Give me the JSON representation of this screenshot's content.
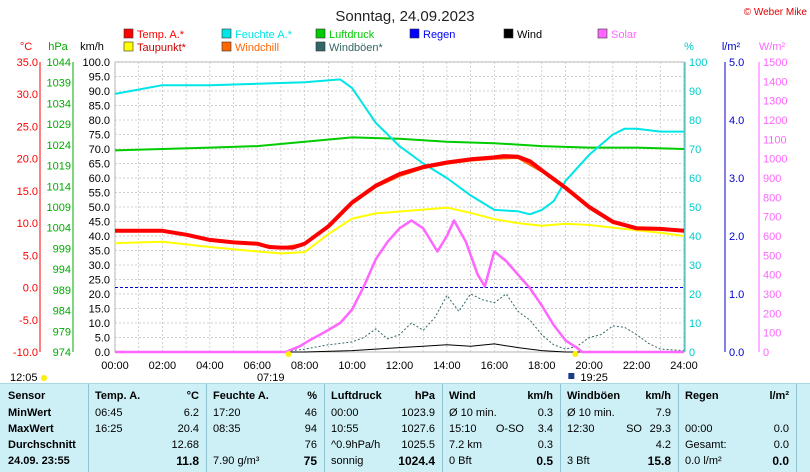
{
  "title": "Sonntag, 24.09.2023",
  "credit": "© Weber Mike",
  "legend": [
    {
      "label": "Temp. A.*",
      "color": "#ff0000"
    },
    {
      "label": "Feuchte A.*",
      "color": "#00e5e5"
    },
    {
      "label": "Luftdruck",
      "color": "#00cc00"
    },
    {
      "label": "Regen",
      "color": "#0000ff"
    },
    {
      "label": "Wind",
      "color": "#000000"
    },
    {
      "label": "Solar",
      "color": "#ff66ff"
    },
    {
      "label": "Taupunkt*",
      "color": "#ffff00"
    },
    {
      "label": "Windchill",
      "color": "#ff6600"
    },
    {
      "label": "Windböen*",
      "color": "#336666"
    }
  ],
  "axis_units": {
    "temp": "°C",
    "pressure": "hPa",
    "speed": "km/h",
    "humidity": "%",
    "rain": "l/m²",
    "solar": "W/m²"
  },
  "chart_data": {
    "type": "line",
    "x_ticks": [
      "00:00",
      "02:00",
      "04:00",
      "06:00",
      "08:00",
      "10:00",
      "12:00",
      "14:00",
      "16:00",
      "18:00",
      "20:00",
      "22:00",
      "24:00"
    ],
    "axes": {
      "temp": {
        "min": -10,
        "max": 35,
        "ticks": [
          "35.0",
          "30.0",
          "25.0",
          "20.0",
          "15.0",
          "10.0",
          "5.0",
          "0.0",
          "-5.0",
          "-10.0"
        ]
      },
      "pressure": {
        "ticks": [
          "1044",
          "1039",
          "1034",
          "1029",
          "1024",
          "1019",
          "1014",
          "1009",
          "1004",
          "999",
          "994",
          "989",
          "984",
          "979",
          "974"
        ]
      },
      "speed": {
        "min": 0,
        "max": 100,
        "ticks": [
          "100.0",
          "95.0",
          "90.0",
          "85.0",
          "80.0",
          "75.0",
          "70.0",
          "65.0",
          "60.0",
          "55.0",
          "50.0",
          "45.0",
          "40.0",
          "35.0",
          "30.0",
          "25.0",
          "20.0",
          "15.0",
          "10.0",
          "5.0",
          "0.0"
        ]
      },
      "humidity": {
        "min": 0,
        "max": 100,
        "ticks": [
          "100",
          "90",
          "80",
          "70",
          "60",
          "50",
          "40",
          "30",
          "20",
          "10",
          "0"
        ]
      },
      "rain": {
        "min": 0,
        "max": 5,
        "ticks": [
          "5.0",
          "4.0",
          "3.0",
          "2.0",
          "1.0",
          "0.0"
        ]
      },
      "solar": {
        "min": 0,
        "max": 1500,
        "ticks": [
          "1500",
          "1400",
          "1300",
          "1200",
          "1100",
          "1000",
          "900",
          "800",
          "700",
          "600",
          "500",
          "400",
          "300",
          "200",
          "100",
          "0"
        ]
      }
    },
    "series": [
      {
        "name": "Temp. A.*",
        "axis": "temp",
        "color": "#ff0000",
        "points": [
          [
            0,
            8.8
          ],
          [
            2,
            8.8
          ],
          [
            3,
            8.2
          ],
          [
            4,
            7.4
          ],
          [
            5,
            7.0
          ],
          [
            6,
            6.8
          ],
          [
            6.5,
            6.3
          ],
          [
            7,
            6.2
          ],
          [
            7.5,
            6.2
          ],
          [
            8,
            6.8
          ],
          [
            9,
            9.5
          ],
          [
            10,
            13.2
          ],
          [
            11,
            15.8
          ],
          [
            12,
            17.6
          ],
          [
            13,
            18.7
          ],
          [
            14,
            19.4
          ],
          [
            15,
            19.9
          ],
          [
            16,
            20.2
          ],
          [
            16.4,
            20.4
          ],
          [
            17,
            20.3
          ],
          [
            17.5,
            19.6
          ],
          [
            18,
            18.2
          ],
          [
            19,
            15.5
          ],
          [
            20,
            12.5
          ],
          [
            21,
            10.2
          ],
          [
            22,
            9.2
          ],
          [
            23,
            9.1
          ],
          [
            24,
            8.8
          ]
        ]
      },
      {
        "name": "Windchill",
        "axis": "temp",
        "color": "#ff6600",
        "points": [
          [
            0,
            8.8
          ],
          [
            2,
            8.8
          ],
          [
            3,
            8.2
          ],
          [
            4,
            7.4
          ],
          [
            5,
            7.0
          ],
          [
            6,
            6.8
          ],
          [
            7,
            6.2
          ],
          [
            8,
            6.8
          ],
          [
            9,
            9.3
          ],
          [
            10,
            13.0
          ],
          [
            11,
            15.6
          ],
          [
            12,
            17.3
          ],
          [
            13,
            18.5
          ],
          [
            14,
            19.2
          ],
          [
            15,
            19.7
          ],
          [
            16,
            20.0
          ],
          [
            17,
            20.1
          ],
          [
            18,
            18.0
          ],
          [
            19,
            15.3
          ],
          [
            20,
            12.3
          ],
          [
            21,
            10.0
          ],
          [
            22,
            9.2
          ],
          [
            24,
            8.8
          ]
        ]
      },
      {
        "name": "Taupunkt*",
        "axis": "temp",
        "color": "#ffff00",
        "points": [
          [
            0,
            6.9
          ],
          [
            2,
            7.1
          ],
          [
            4,
            6.3
          ],
          [
            6,
            5.6
          ],
          [
            7,
            5.3
          ],
          [
            8,
            5.5
          ],
          [
            9,
            8.3
          ],
          [
            10,
            10.7
          ],
          [
            11,
            11.5
          ],
          [
            12,
            11.8
          ],
          [
            13,
            12.1
          ],
          [
            14,
            12.4
          ],
          [
            15,
            11.6
          ],
          [
            16,
            10.6
          ],
          [
            17,
            10.0
          ],
          [
            18,
            9.6
          ],
          [
            19,
            9.9
          ],
          [
            20,
            9.7
          ],
          [
            21,
            9.3
          ],
          [
            22,
            8.9
          ],
          [
            23,
            8.5
          ],
          [
            24,
            8.0
          ]
        ]
      },
      {
        "name": "Feuchte A.*",
        "axis": "humidity",
        "color": "#00e5e5",
        "points": [
          [
            0,
            89
          ],
          [
            2,
            92
          ],
          [
            4,
            92
          ],
          [
            6,
            92.5
          ],
          [
            8,
            93
          ],
          [
            9.5,
            94
          ],
          [
            10,
            91
          ],
          [
            11,
            79
          ],
          [
            12,
            71
          ],
          [
            13,
            65
          ],
          [
            14,
            60
          ],
          [
            15,
            54
          ],
          [
            16,
            49
          ],
          [
            17,
            48.5
          ],
          [
            17.5,
            47.5
          ],
          [
            18,
            49
          ],
          [
            18.5,
            52
          ],
          [
            19,
            59
          ],
          [
            20,
            68
          ],
          [
            21,
            75
          ],
          [
            21.5,
            77
          ],
          [
            22,
            77
          ],
          [
            23,
            76
          ],
          [
            24,
            76
          ]
        ]
      },
      {
        "name": "Luftdruck",
        "axis": "humidity",
        "color": "#00cc00",
        "points": [
          [
            0,
            69.5
          ],
          [
            2,
            70
          ],
          [
            4,
            70.5
          ],
          [
            6,
            71
          ],
          [
            8,
            72.5
          ],
          [
            10,
            74
          ],
          [
            12,
            73.5
          ],
          [
            14,
            72.5
          ],
          [
            16,
            72
          ],
          [
            18,
            71
          ],
          [
            20,
            70.5
          ],
          [
            22,
            70.5
          ],
          [
            24,
            70
          ]
        ]
      },
      {
        "name": "Solar",
        "axis": "solar",
        "color": "#ff66ff",
        "points": [
          [
            0,
            0
          ],
          [
            7.2,
            0
          ],
          [
            7.8,
            30
          ],
          [
            8.2,
            60
          ],
          [
            8.8,
            100
          ],
          [
            9.5,
            150
          ],
          [
            10,
            220
          ],
          [
            10.5,
            340
          ],
          [
            11,
            480
          ],
          [
            11.5,
            570
          ],
          [
            12,
            640
          ],
          [
            12.5,
            680
          ],
          [
            13,
            640
          ],
          [
            13.3,
            580
          ],
          [
            13.6,
            520
          ],
          [
            14,
            600
          ],
          [
            14.3,
            680
          ],
          [
            14.8,
            570
          ],
          [
            15.3,
            400
          ],
          [
            15.6,
            340
          ],
          [
            16,
            520
          ],
          [
            16.5,
            470
          ],
          [
            17,
            400
          ],
          [
            17.5,
            330
          ],
          [
            18,
            240
          ],
          [
            18.5,
            140
          ],
          [
            19,
            60
          ],
          [
            19.5,
            20
          ],
          [
            19.7,
            0
          ],
          [
            24,
            0
          ]
        ]
      },
      {
        "name": "Windböen*",
        "axis": "speed",
        "color": "#336666",
        "points": [
          [
            0,
            0
          ],
          [
            7,
            0
          ],
          [
            8,
            1
          ],
          [
            9,
            2.5
          ],
          [
            10,
            3.5
          ],
          [
            10.5,
            5
          ],
          [
            11,
            8
          ],
          [
            11.5,
            4.5
          ],
          [
            12,
            6
          ],
          [
            12.5,
            10
          ],
          [
            13,
            7.5
          ],
          [
            13.5,
            12
          ],
          [
            14,
            19.5
          ],
          [
            14.5,
            14
          ],
          [
            15,
            20
          ],
          [
            15.5,
            18
          ],
          [
            16,
            17
          ],
          [
            16.5,
            20
          ],
          [
            17,
            14
          ],
          [
            17.5,
            11
          ],
          [
            18,
            6
          ],
          [
            18.5,
            2.5
          ],
          [
            19,
            1
          ],
          [
            19.5,
            2
          ],
          [
            20,
            5
          ],
          [
            20.5,
            6
          ],
          [
            21,
            9
          ],
          [
            21.5,
            8.5
          ],
          [
            22,
            6
          ],
          [
            22.5,
            3
          ],
          [
            23,
            1
          ],
          [
            24,
            0.5
          ]
        ]
      },
      {
        "name": "Wind",
        "axis": "speed",
        "color": "#000000",
        "points": [
          [
            0,
            0
          ],
          [
            8,
            0
          ],
          [
            10,
            0.5
          ],
          [
            11,
            1
          ],
          [
            12,
            1.5
          ],
          [
            13,
            2
          ],
          [
            14,
            2.5
          ],
          [
            15,
            2
          ],
          [
            16,
            2.8
          ],
          [
            17,
            1.5
          ],
          [
            18,
            0.5
          ],
          [
            19,
            0
          ],
          [
            24,
            0
          ]
        ]
      }
    ],
    "freezing_line": {
      "axis": "temp",
      "value": 0,
      "color": "#0000cc"
    },
    "sun": {
      "rise_label": "07:19",
      "set_label": "19:25",
      "rise_time": 7.317,
      "set_time": 19.417
    },
    "moon": {
      "rise_label": "12:05",
      "set_label": "19:25"
    }
  },
  "summary_table": {
    "label_col": {
      "header": "Sensor",
      "rows": [
        "MinWert",
        "MaxWert",
        "Durchschnitt",
        "24.09.  23:55"
      ]
    },
    "temp": {
      "header": "Temp. A.",
      "unit": "°C",
      "rows": [
        {
          "time": "06:45",
          "value": "6.2"
        },
        {
          "time": "16:25",
          "value": "20.4"
        },
        {
          "time": "",
          "value": "12.68"
        },
        {
          "time": "",
          "value": "11.8"
        }
      ]
    },
    "humidity": {
      "header": "Feuchte A.",
      "unit": "%",
      "rows": [
        {
          "time": "17:20",
          "value": "46"
        },
        {
          "time": "08:35",
          "value": "94"
        },
        {
          "time": "",
          "value": "76"
        },
        {
          "time": "7.90 g/m³",
          "value": "75"
        }
      ]
    },
    "pressure": {
      "header": "Luftdruck",
      "unit": "hPa",
      "rows": [
        {
          "time": "00:00",
          "value": "1023.9"
        },
        {
          "time": "10:55",
          "value": "1027.6"
        },
        {
          "time": "^0.9hPa/h",
          "value": "1025.5"
        },
        {
          "time": "sonnig",
          "value": "1024.4"
        }
      ]
    },
    "wind": {
      "header": "Wind",
      "unit": "km/h",
      "rows": [
        {
          "time": "Ø 10 min.",
          "value": "0.3"
        },
        {
          "time": "15:10",
          "mid": "O-SO",
          "value": "3.4"
        },
        {
          "time": "7.2 km",
          "value": "0.3"
        },
        {
          "time": "0 Bft",
          "value": "0.5"
        }
      ]
    },
    "gust": {
      "header": "Windböen",
      "unit": "km/h",
      "rows": [
        {
          "time": "Ø 10 min.",
          "value": "7.9"
        },
        {
          "time": "12:30",
          "mid": "SO",
          "value": "29.3"
        },
        {
          "time": "",
          "value": "4.2"
        },
        {
          "time": "3 Bft",
          "value": "15.8"
        }
      ]
    },
    "rain": {
      "header": "Regen",
      "unit": "l/m²",
      "rows": [
        {
          "time": "",
          "value": ""
        },
        {
          "time": "00:00",
          "value": "0.0"
        },
        {
          "time": "Gesamt:",
          "value": "0.0"
        },
        {
          "time": "0.0 l/m²",
          "value": "0.0"
        }
      ]
    }
  }
}
